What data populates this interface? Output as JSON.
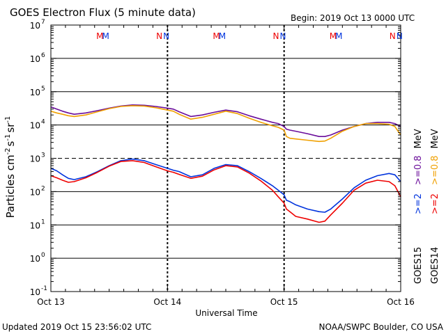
{
  "header": {
    "title": "GOES Electron Flux (5 minute data)",
    "begin": "Begin: 2019 Oct 13 0000 UTC"
  },
  "footer": {
    "updated": "Updated 2019 Oct 15 23:56:02 UTC",
    "credit": "NOAA/SWPC Boulder, CO USA"
  },
  "colors": {
    "goes15_08": "#6a0d9a",
    "goes14_08": "#f0a000",
    "goes15_2": "#0033dd",
    "goes14_2": "#ee0000",
    "threshold": "#000000"
  },
  "chart_data": {
    "type": "line",
    "title": "GOES Electron Flux (5 minute data)",
    "xlabel": "Universal Time",
    "ylabel": "Particles cm-2 s-1 sr-1",
    "ylabel_parts": {
      "base": "Particles cm",
      "e1": "-2",
      "mid1": "s",
      "e2": "-1",
      "mid2": "sr",
      "e3": "-1"
    },
    "y_scale": "log",
    "ylim": [
      0.1,
      10000000
    ],
    "xlim_days": [
      0,
      3
    ],
    "x_ticks": [
      {
        "day": 0,
        "label": "Oct 13"
      },
      {
        "day": 1,
        "label": "Oct 14"
      },
      {
        "day": 2,
        "label": "Oct 15"
      },
      {
        "day": 3,
        "label": "Oct 16"
      }
    ],
    "y_ticks": [
      {
        "value": 0.1,
        "base": "10",
        "exp": "-1"
      },
      {
        "value": 1,
        "base": "10",
        "exp": "0"
      },
      {
        "value": 10,
        "base": "10",
        "exp": "1"
      },
      {
        "value": 100,
        "base": "10",
        "exp": "2"
      },
      {
        "value": 1000,
        "base": "10",
        "exp": "3"
      },
      {
        "value": 10000,
        "base": "10",
        "exp": "4"
      },
      {
        "value": 100000,
        "base": "10",
        "exp": "5"
      },
      {
        "value": 1000000,
        "base": "10",
        "exp": "6"
      },
      {
        "value": 10000000,
        "base": "10",
        "exp": "7"
      }
    ],
    "threshold": 1000,
    "grid": true,
    "markers": [
      {
        "day": 0.42,
        "text": "M",
        "color": "#ee0000"
      },
      {
        "day": 0.47,
        "text": "M",
        "color": "#0033dd"
      },
      {
        "day": 0.93,
        "text": "N",
        "color": "#ee0000"
      },
      {
        "day": 0.99,
        "text": "N",
        "color": "#0033dd"
      },
      {
        "day": 1.42,
        "text": "M",
        "color": "#ee0000"
      },
      {
        "day": 1.47,
        "text": "M",
        "color": "#0033dd"
      },
      {
        "day": 1.93,
        "text": "N",
        "color": "#ee0000"
      },
      {
        "day": 1.99,
        "text": "N",
        "color": "#0033dd"
      },
      {
        "day": 2.42,
        "text": "M",
        "color": "#ee0000"
      },
      {
        "day": 2.47,
        "text": "M",
        "color": "#0033dd"
      },
      {
        "day": 2.93,
        "text": "N",
        "color": "#ee0000"
      },
      {
        "day": 2.99,
        "text": "N",
        "color": "#0033dd"
      }
    ],
    "legend": {
      "placement": "right",
      "energies": [
        {
          "label": ">=0.8",
          "color": "#f0a000"
        },
        {
          "label": ">=0.8",
          "color": "#6a0d9a"
        },
        {
          "label": ">=2",
          "color": "#ee0000"
        },
        {
          "label": ">=2",
          "color": "#0033dd"
        }
      ],
      "unit": "MeV",
      "satellites": [
        {
          "label": "GOES14"
        },
        {
          "label": "GOES15"
        }
      ]
    },
    "series": [
      {
        "name": "GOES15 >=0.8 MeV",
        "color": "#6a0d9a",
        "x": [
          0,
          0.05,
          0.1,
          0.15,
          0.2,
          0.3,
          0.4,
          0.5,
          0.6,
          0.7,
          0.8,
          0.9,
          1.0,
          1.05,
          1.1,
          1.2,
          1.3,
          1.4,
          1.5,
          1.6,
          1.7,
          1.8,
          1.9,
          1.95,
          2.0,
          2.02,
          2.05,
          2.1,
          2.2,
          2.3,
          2.35,
          2.4,
          2.5,
          2.6,
          2.7,
          2.8,
          2.9,
          2.95,
          3.0
        ],
        "y": [
          35000,
          30000,
          26000,
          23000,
          21000,
          23000,
          27000,
          32000,
          37000,
          40000,
          39000,
          36000,
          32000,
          30000,
          25000,
          18000,
          20000,
          24000,
          28000,
          25000,
          19000,
          15000,
          12000,
          11000,
          9000,
          7500,
          7000,
          6500,
          5500,
          4500,
          4500,
          5000,
          7000,
          9000,
          11000,
          12000,
          12000,
          11000,
          9000
        ]
      },
      {
        "name": "GOES14 >=0.8 MeV",
        "color": "#f0a000",
        "x": [
          0,
          0.05,
          0.1,
          0.15,
          0.2,
          0.3,
          0.4,
          0.5,
          0.6,
          0.7,
          0.8,
          0.9,
          1.0,
          1.05,
          1.1,
          1.2,
          1.3,
          1.4,
          1.5,
          1.6,
          1.7,
          1.8,
          1.9,
          1.95,
          2.0,
          2.02,
          2.05,
          2.1,
          2.2,
          2.3,
          2.35,
          2.4,
          2.5,
          2.6,
          2.7,
          2.8,
          2.9,
          2.95,
          3.0
        ],
        "y": [
          26000,
          23000,
          21000,
          19000,
          18000,
          20000,
          25000,
          31000,
          36000,
          38000,
          37000,
          33000,
          28000,
          26000,
          21000,
          15000,
          17000,
          21000,
          26000,
          22000,
          16000,
          12000,
          9500,
          8500,
          7000,
          4500,
          4000,
          3800,
          3500,
          3200,
          3300,
          4000,
          6500,
          9000,
          11000,
          11000,
          10500,
          9000,
          5000
        ]
      },
      {
        "name": "GOES15 >=2 MeV",
        "color": "#0033dd",
        "x": [
          0,
          0.05,
          0.1,
          0.15,
          0.2,
          0.3,
          0.4,
          0.5,
          0.6,
          0.7,
          0.8,
          0.9,
          1.0,
          1.05,
          1.1,
          1.2,
          1.3,
          1.4,
          1.5,
          1.6,
          1.7,
          1.8,
          1.9,
          1.95,
          2.0,
          2.02,
          2.05,
          2.1,
          2.2,
          2.3,
          2.35,
          2.4,
          2.5,
          2.6,
          2.7,
          2.8,
          2.9,
          2.95,
          3.0
        ],
        "y": [
          500,
          420,
          320,
          250,
          230,
          280,
          400,
          600,
          850,
          950,
          850,
          650,
          500,
          440,
          400,
          280,
          320,
          500,
          650,
          600,
          400,
          250,
          150,
          110,
          80,
          55,
          50,
          40,
          30,
          25,
          24,
          30,
          60,
          130,
          220,
          300,
          350,
          320,
          200
        ]
      },
      {
        "name": "GOES14 >=2 MeV",
        "color": "#ee0000",
        "x": [
          0,
          0.05,
          0.1,
          0.15,
          0.2,
          0.3,
          0.4,
          0.5,
          0.6,
          0.7,
          0.8,
          0.9,
          1.0,
          1.05,
          1.1,
          1.2,
          1.3,
          1.4,
          1.5,
          1.6,
          1.7,
          1.8,
          1.9,
          1.95,
          2.0,
          2.02,
          2.05,
          2.1,
          2.2,
          2.3,
          2.35,
          2.4,
          2.5,
          2.6,
          2.7,
          2.8,
          2.9,
          2.95,
          3.0
        ],
        "y": [
          300,
          260,
          220,
          190,
          200,
          260,
          380,
          580,
          800,
          850,
          750,
          560,
          420,
          380,
          330,
          250,
          290,
          450,
          600,
          550,
          360,
          210,
          110,
          70,
          45,
          30,
          25,
          18,
          15,
          12,
          13,
          20,
          45,
          110,
          180,
          220,
          200,
          150,
          70
        ]
      }
    ]
  }
}
